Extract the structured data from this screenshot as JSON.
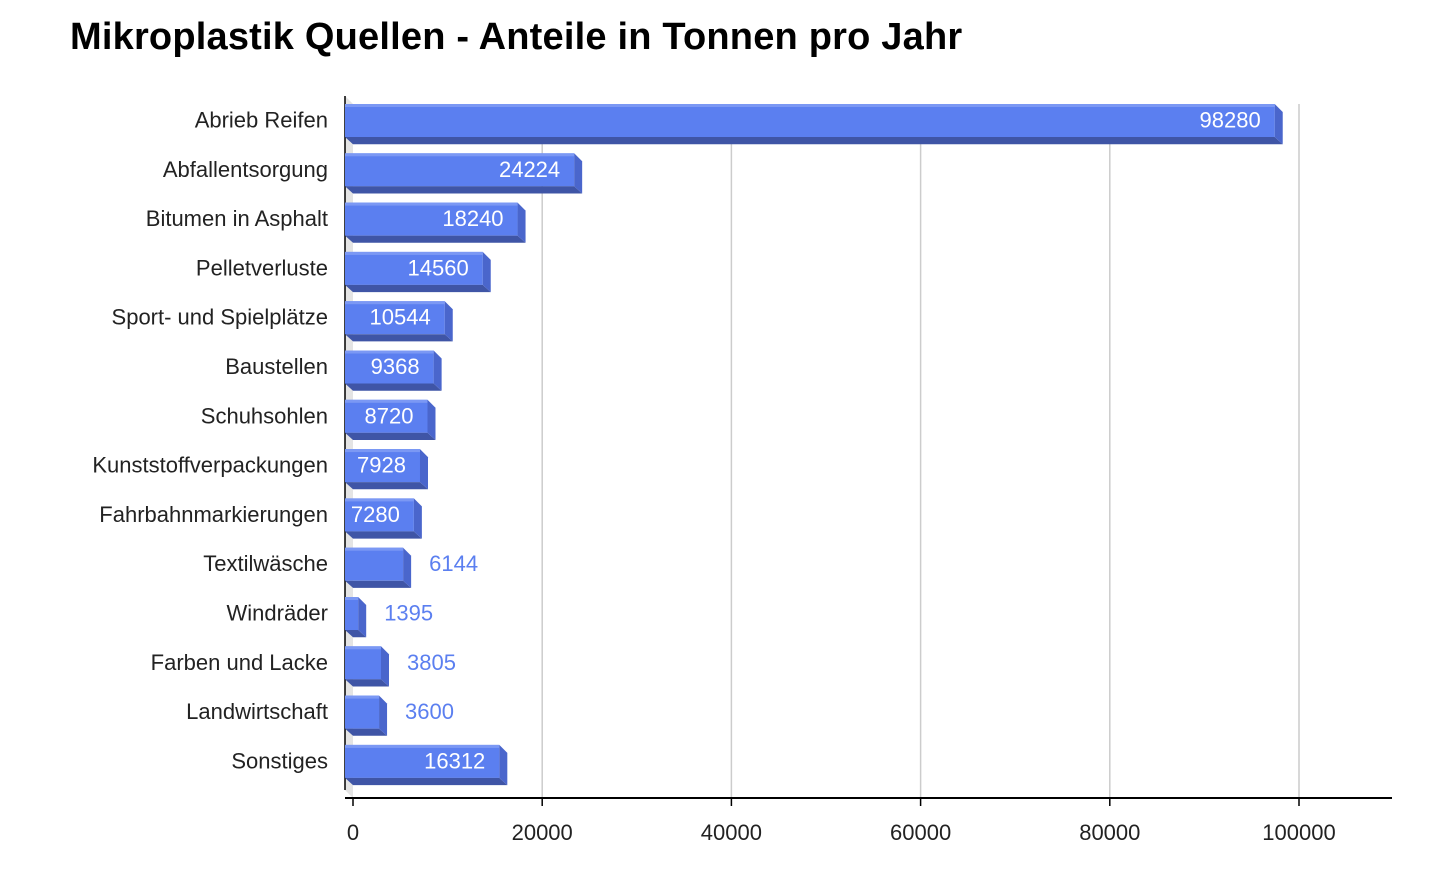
{
  "chart_data": {
    "type": "bar",
    "orientation": "horizontal",
    "title": "Mikroplastik Quellen - Anteile in Tonnen pro Jahr",
    "xlabel": "",
    "ylabel": "",
    "categories": [
      "Abrieb Reifen",
      "Abfallentsorgung",
      "Bitumen in Asphalt",
      "Pelletverluste",
      "Sport- und Spielplätze",
      "Baustellen",
      "Schuhsohlen",
      "Kunststoffverpackungen",
      "Fahrbahnmarkierungen",
      "Textilwäsche",
      "Windräder",
      "Farben und Lacke",
      "Landwirtschaft",
      "Sonstiges"
    ],
    "values": [
      98280,
      24224,
      18240,
      14560,
      10544,
      9368,
      8720,
      7928,
      7280,
      6144,
      1395,
      3805,
      3600,
      16312
    ],
    "data_labels": [
      "98280",
      "24224",
      "18240",
      "14560",
      "10544",
      "9368",
      "8720",
      "7928",
      "7280",
      "6144",
      "1395",
      "3805",
      "3600",
      "16312"
    ],
    "xlim": [
      0,
      110000
    ],
    "x_ticks": [
      0,
      20000,
      40000,
      60000,
      80000,
      100000
    ],
    "x_tick_labels": [
      "0",
      "20000",
      "40000",
      "60000",
      "80000",
      "100000"
    ],
    "grid": true,
    "legend": "none",
    "style": "3d",
    "colors": {
      "bar_front": "#5b7ff0",
      "bar_top": "#7b98f4",
      "bar_bottom": "#3f55a6",
      "bar_side": "#4a66cc",
      "label_inside": "#ffffff",
      "label_outside": "#5b7ff0",
      "grid": "#cccccc",
      "axis": "#000000",
      "floor": "#e4e4e4"
    }
  }
}
